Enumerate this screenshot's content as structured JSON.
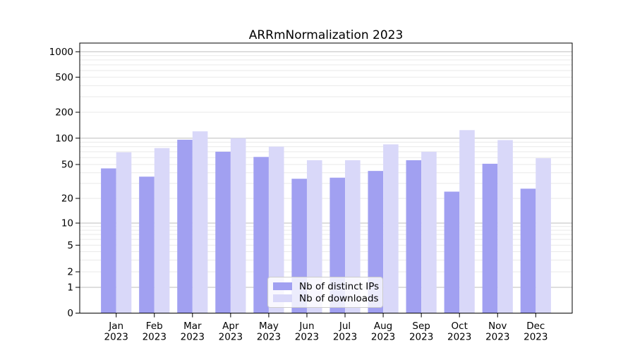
{
  "chart_data": {
    "type": "bar",
    "title": "ARRmNormalization 2023",
    "months": [
      "Jan",
      "Feb",
      "Mar",
      "Apr",
      "May",
      "Jun",
      "Jul",
      "Aug",
      "Sep",
      "Oct",
      "Nov",
      "Dec"
    ],
    "year": "2023",
    "series": [
      {
        "name": "Nb of distinct IPs",
        "color": "#a1a0f1",
        "values": [
          45,
          36,
          96,
          70,
          61,
          34,
          35,
          42,
          56,
          24,
          51,
          26
        ]
      },
      {
        "name": "Nb of downloads",
        "color": "#d9d8f9",
        "values": [
          69,
          77,
          120,
          100,
          80,
          56,
          56,
          85,
          70,
          124,
          95,
          59
        ]
      }
    ],
    "y_axis": {
      "scale": "symlog",
      "ticks": [
        0,
        1,
        2,
        5,
        10,
        20,
        50,
        100,
        200,
        500,
        1000
      ],
      "tick_labels": [
        "0",
        "1",
        "2",
        "5",
        "10",
        "20",
        "50",
        "100",
        "200",
        "500",
        "1000"
      ]
    },
    "ylim": [
      0,
      1300
    ],
    "grid": "both",
    "legend_position": "lower center",
    "colors": {
      "major_grid": "#bdbdbd",
      "minor_grid": "#e9e9e9",
      "axis": "#000000",
      "text": "#000000",
      "background": "#ffffff"
    }
  }
}
